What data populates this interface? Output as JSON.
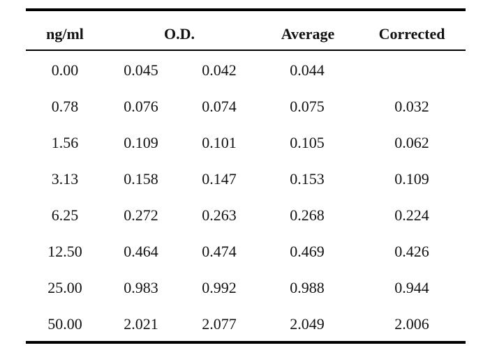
{
  "table": {
    "headers": {
      "concentration": "ng/ml",
      "od": "O.D.",
      "average": "Average",
      "corrected": "Corrected"
    },
    "rows": [
      {
        "conc": "0.00",
        "od1": "0.045",
        "od2": "0.042",
        "avg": "0.044",
        "corr": ""
      },
      {
        "conc": "0.78",
        "od1": "0.076",
        "od2": "0.074",
        "avg": "0.075",
        "corr": "0.032"
      },
      {
        "conc": "1.56",
        "od1": "0.109",
        "od2": "0.101",
        "avg": "0.105",
        "corr": "0.062"
      },
      {
        "conc": "3.13",
        "od1": "0.158",
        "od2": "0.147",
        "avg": "0.153",
        "corr": "0.109"
      },
      {
        "conc": "6.25",
        "od1": "0.272",
        "od2": "0.263",
        "avg": "0.268",
        "corr": "0.224"
      },
      {
        "conc": "12.50",
        "od1": "0.464",
        "od2": "0.474",
        "avg": "0.469",
        "corr": "0.426"
      },
      {
        "conc": "25.00",
        "od1": "0.983",
        "od2": "0.992",
        "avg": "0.988",
        "corr": "0.944"
      },
      {
        "conc": "50.00",
        "od1": "2.021",
        "od2": "2.077",
        "avg": "2.049",
        "corr": "2.006"
      }
    ]
  }
}
